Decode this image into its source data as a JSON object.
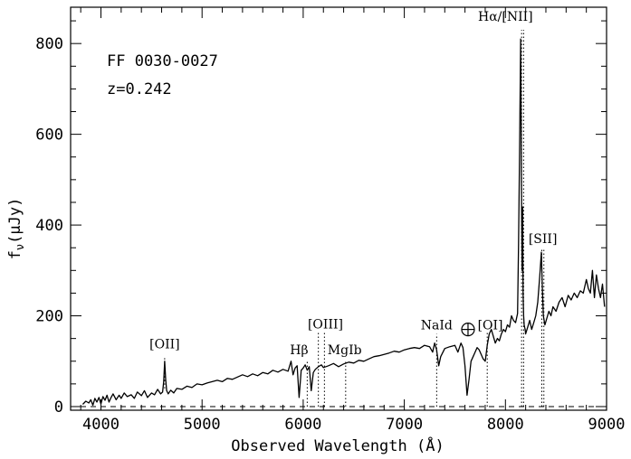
{
  "chart_data": {
    "type": "line",
    "object_name": "FF 0030-0027",
    "redshift_label": "z=0.242",
    "xlabel": "Observed Wavelength (Å)",
    "ylabel": "f_ν(μJy)",
    "ylabel_main": "f",
    "ylabel_sub": "ν",
    "ylabel_rest": "(μJy)",
    "xlim": [
      3700,
      9000
    ],
    "ylim": [
      -8,
      880
    ],
    "x_ticks": [
      4000,
      5000,
      6000,
      7000,
      8000,
      9000
    ],
    "y_ticks": [
      0,
      200,
      400,
      600,
      800
    ],
    "zero_line": 0,
    "series": [
      {
        "x": [
          3820,
          3850,
          3880,
          3900,
          3920,
          3940,
          3960,
          3980,
          4000,
          4020,
          4040,
          4060,
          4080,
          4100,
          4120,
          4150,
          4180,
          4200,
          4230,
          4260,
          4300,
          4330,
          4360,
          4400,
          4430,
          4460,
          4500,
          4530,
          4560,
          4590,
          4610,
          4620,
          4630,
          4640,
          4650,
          4665,
          4690,
          4720,
          4750,
          4800,
          4850,
          4900,
          4950,
          5000,
          5050,
          5100,
          5150,
          5200,
          5250,
          5300,
          5350,
          5400,
          5450,
          5500,
          5550,
          5600,
          5650,
          5700,
          5750,
          5800,
          5850,
          5880,
          5900,
          5920,
          5940,
          5960,
          5980,
          6000,
          6020,
          6040,
          6060,
          6080,
          6100,
          6120,
          6150,
          6180,
          6200,
          6250,
          6300,
          6350,
          6400,
          6450,
          6500,
          6550,
          6600,
          6650,
          6700,
          6750,
          6800,
          6850,
          6900,
          6950,
          7000,
          7050,
          7100,
          7150,
          7200,
          7250,
          7280,
          7300,
          7320,
          7340,
          7360,
          7400,
          7450,
          7500,
          7530,
          7560,
          7580,
          7600,
          7620,
          7640,
          7660,
          7680,
          7700,
          7720,
          7740,
          7760,
          7780,
          7800,
          7820,
          7840,
          7860,
          7880,
          7900,
          7920,
          7940,
          7960,
          7980,
          8000,
          8020,
          8040,
          8060,
          8080,
          8100,
          8120,
          8130,
          8140,
          8150,
          8155,
          8160,
          8165,
          8170,
          8175,
          8180,
          8185,
          8190,
          8195,
          8200,
          8220,
          8240,
          8260,
          8280,
          8300,
          8320,
          8340,
          8355,
          8365,
          8375,
          8390,
          8410,
          8430,
          8450,
          8470,
          8500,
          8530,
          8560,
          8590,
          8620,
          8650,
          8680,
          8710,
          8740,
          8770,
          8800,
          8820,
          8840,
          8860,
          8880,
          8900,
          8920,
          8940,
          8960,
          8980
        ],
        "y": [
          5,
          12,
          8,
          15,
          3,
          18,
          10,
          20,
          6,
          22,
          14,
          25,
          10,
          20,
          28,
          15,
          25,
          18,
          30,
          22,
          26,
          18,
          32,
          24,
          35,
          20,
          30,
          26,
          38,
          28,
          32,
          55,
          100,
          60,
          35,
          28,
          36,
          30,
          40,
          38,
          45,
          42,
          50,
          48,
          52,
          55,
          58,
          55,
          62,
          60,
          65,
          70,
          66,
          72,
          68,
          75,
          72,
          80,
          76,
          82,
          78,
          100,
          70,
          85,
          90,
          20,
          80,
          85,
          92,
          80,
          88,
          35,
          75,
          82,
          88,
          92,
          86,
          90,
          95,
          88,
          94,
          98,
          96,
          102,
          100,
          105,
          110,
          112,
          115,
          118,
          122,
          120,
          125,
          128,
          130,
          128,
          135,
          132,
          120,
          140,
          125,
          90,
          110,
          128,
          132,
          135,
          120,
          140,
          130,
          90,
          25,
          60,
          100,
          110,
          120,
          130,
          125,
          115,
          105,
          100,
          135,
          160,
          170,
          155,
          140,
          150,
          145,
          160,
          170,
          165,
          180,
          175,
          200,
          190,
          185,
          205,
          360,
          560,
          810,
          650,
          420,
          300,
          440,
          250,
          200,
          180,
          175,
          170,
          160,
          175,
          190,
          170,
          185,
          200,
          230,
          290,
          340,
          260,
          200,
          180,
          195,
          210,
          200,
          220,
          210,
          230,
          240,
          220,
          245,
          235,
          250,
          240,
          255,
          250,
          280,
          260,
          250,
          300,
          240,
          290,
          260,
          240,
          270,
          220
        ]
      }
    ],
    "annotations": [
      {
        "label": "[OII]",
        "x": 4630,
        "y_top": 110,
        "y_bottom": 40,
        "text_x": 4630,
        "text_y": 128,
        "anchor": "middle"
      },
      {
        "label": "Hβ",
        "x": 6040,
        "y_top": 100,
        "y_bottom": 0,
        "text_x": 5960,
        "text_y": 115,
        "anchor": "middle"
      },
      {
        "label": "[OIII]",
        "x": 6150,
        "y_top": 165,
        "y_bottom": 0,
        "text_x": 6220,
        "text_y": 172,
        "anchor": "middle"
      },
      {
        "label": "[OIII]",
        "x": 6210,
        "y_top": 165,
        "y_bottom": 0,
        "text_x": null,
        "text_y": null,
        "anchor": "middle"
      },
      {
        "label": "MgIb",
        "x": 6420,
        "y_top": 100,
        "y_bottom": 0,
        "text_x": 6410,
        "text_y": 115,
        "anchor": "middle"
      },
      {
        "label": "NaId",
        "x": 7320,
        "y_top": 160,
        "y_bottom": 0,
        "text_x": 7320,
        "text_y": 170,
        "anchor": "middle"
      },
      {
        "label": "[OI]",
        "x": 7820,
        "y_top": 165,
        "y_bottom": 0,
        "text_x": 7850,
        "text_y": 170,
        "anchor": "middle"
      },
      {
        "label": "[SII]",
        "x": 8360,
        "y_top": 350,
        "y_bottom": 0,
        "text_x": 8370,
        "text_y": 360,
        "anchor": "middle"
      },
      {
        "label": "[SII]",
        "x": 8380,
        "y_top": 350,
        "y_bottom": 0,
        "text_x": null,
        "text_y": null,
        "anchor": "middle"
      },
      {
        "label": "Hα/[NII]",
        "x": 8160,
        "y_top": 830,
        "y_bottom": 0,
        "text_x": 8000,
        "text_y": 850,
        "anchor": "middle"
      },
      {
        "label": "Hα/[NII]",
        "x": 8180,
        "y_top": 830,
        "y_bottom": 0,
        "text_x": null,
        "text_y": null,
        "anchor": "middle"
      }
    ],
    "telluric": {
      "x": 7630,
      "y": 170
    }
  }
}
